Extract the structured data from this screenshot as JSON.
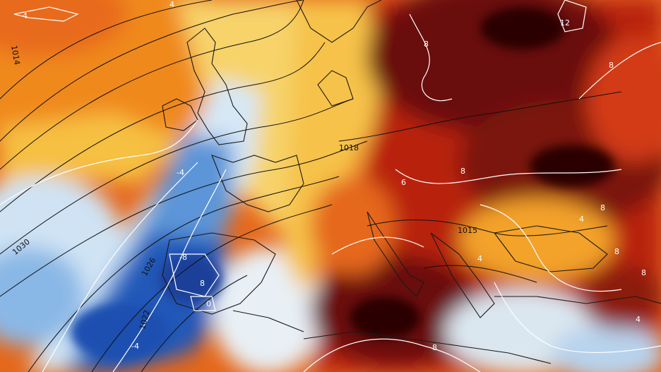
{
  "map": {
    "colors": {
      "cold_deep": "#1d4fb0",
      "cold": "#3f7fd0",
      "cool": "#a9cfee",
      "neutral": "#f3f0e6",
      "warm_light": "#f7d36a",
      "warm": "#f3a22a",
      "hot": "#e5671a",
      "hotter": "#b8240f",
      "extreme": "#6a0d08",
      "extreme_core": "#2a0604",
      "coast": "#1a1a1a",
      "isobar": "#111111",
      "anomaly_contour": "#ffffff"
    },
    "isobar_labels": [
      "1014",
      "1018",
      "1030",
      "1026",
      "1022",
      "1015"
    ],
    "anomaly_labels": [
      "4",
      "4",
      "12",
      "8",
      "8",
      "-4",
      "8",
      "6",
      "8",
      "-8",
      "8",
      "0",
      "8",
      "8",
      "4",
      "4",
      "-4",
      "8",
      "4"
    ]
  }
}
